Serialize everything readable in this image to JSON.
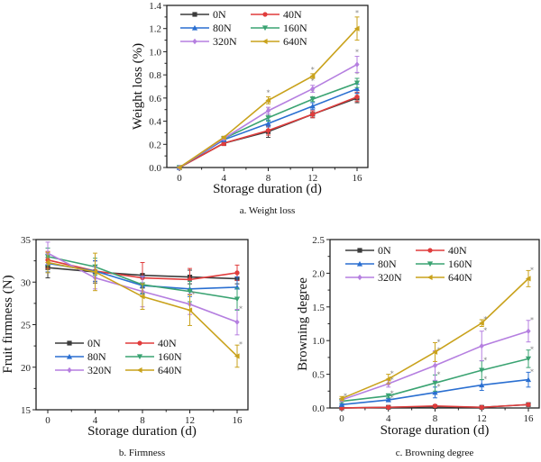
{
  "colors": {
    "0N": "#3b3b3b",
    "40N": "#e03c3c",
    "80N": "#2a6fd1",
    "160N": "#3aa372",
    "320N": "#b57fe0",
    "640N": "#c9a21c"
  },
  "chart_data": [
    {
      "id": "a",
      "type": "line",
      "title": "",
      "caption": "a. Weight loss",
      "xlabel": "Storage duration (d)",
      "ylabel": "Weight loss (%)",
      "x": [
        0,
        4,
        8,
        12,
        16
      ],
      "xticks": [
        "0",
        "4",
        "8",
        "12",
        "16"
      ],
      "yticks": [
        "0.0",
        "0.2",
        "0.4",
        "0.6",
        "0.8",
        "1.0",
        "1.2",
        "1.4"
      ],
      "ylim": [
        0,
        1.4
      ],
      "xlim": [
        -1.5,
        17.5
      ],
      "legend_position": "top-left",
      "series": [
        {
          "name": "0N",
          "values": [
            0,
            0.21,
            0.31,
            0.46,
            0.6
          ],
          "err": [
            0,
            0.02,
            0.05,
            0.03,
            0.04
          ],
          "sig": [
            false,
            false,
            false,
            false,
            false
          ]
        },
        {
          "name": "40N",
          "values": [
            0,
            0.21,
            0.32,
            0.46,
            0.61
          ],
          "err": [
            0,
            0.02,
            0.04,
            0.03,
            0.04
          ],
          "sig": [
            false,
            false,
            false,
            false,
            false
          ]
        },
        {
          "name": "80N",
          "values": [
            0,
            0.24,
            0.38,
            0.53,
            0.68
          ],
          "err": [
            0,
            0.01,
            0.03,
            0.03,
            0.04
          ],
          "sig": [
            false,
            false,
            false,
            true,
            false
          ]
        },
        {
          "name": "160N",
          "values": [
            0,
            0.25,
            0.43,
            0.59,
            0.73
          ],
          "err": [
            0,
            0.01,
            0.03,
            0.02,
            0.04
          ],
          "sig": [
            false,
            false,
            true,
            true,
            true
          ]
        },
        {
          "name": "320N",
          "values": [
            0,
            0.25,
            0.49,
            0.68,
            0.89
          ],
          "err": [
            0,
            0.01,
            0.03,
            0.03,
            0.07
          ],
          "sig": [
            false,
            false,
            true,
            true,
            true
          ]
        },
        {
          "name": "640N",
          "values": [
            0,
            0.26,
            0.58,
            0.79,
            1.2
          ],
          "err": [
            0,
            0.01,
            0.03,
            0.02,
            0.1
          ],
          "sig": [
            false,
            false,
            true,
            true,
            true
          ]
        }
      ]
    },
    {
      "id": "b",
      "type": "line",
      "title": "",
      "caption": "b. Firmness",
      "xlabel": "Storage duration (d)",
      "ylabel": "Fruit firmness (N)",
      "x": [
        0,
        4,
        8,
        12,
        16
      ],
      "xticks": [
        "0",
        "4",
        "8",
        "12",
        "16"
      ],
      "yticks": [
        "15",
        "20",
        "25",
        "30",
        "35"
      ],
      "ylim": [
        15,
        35
      ],
      "xlim": [
        -1.5,
        17.5
      ],
      "legend_position": "bottom-left",
      "series": [
        {
          "name": "0N",
          "values": [
            31.7,
            31.2,
            30.8,
            30.6,
            30.4
          ],
          "err": [
            1.2,
            1.3,
            1.5,
            0.8,
            0.6
          ],
          "sig": [
            false,
            false,
            false,
            false,
            false
          ]
        },
        {
          "name": "40N",
          "values": [
            32.6,
            31.3,
            30.5,
            30.3,
            31.1
          ],
          "err": [
            1.0,
            1.2,
            1.8,
            1.3,
            0.9
          ],
          "sig": [
            false,
            false,
            false,
            false,
            false
          ]
        },
        {
          "name": "80N",
          "values": [
            32.2,
            31.3,
            29.6,
            29.2,
            29.4
          ],
          "err": [
            1.0,
            1.2,
            1.0,
            0.9,
            1.2
          ],
          "sig": [
            false,
            false,
            false,
            false,
            false
          ]
        },
        {
          "name": "160N",
          "values": [
            33.0,
            31.8,
            29.7,
            28.9,
            28.0
          ],
          "err": [
            1.0,
            1.0,
            1.0,
            1.2,
            1.3
          ],
          "sig": [
            false,
            false,
            false,
            false,
            false
          ]
        },
        {
          "name": "320N",
          "values": [
            33.4,
            30.5,
            28.9,
            27.4,
            25.3
          ],
          "err": [
            1.3,
            1.3,
            1.8,
            1.2,
            1.5
          ],
          "sig": [
            false,
            false,
            false,
            false,
            true
          ]
        },
        {
          "name": "640N",
          "values": [
            32.3,
            31.2,
            28.3,
            26.7,
            21.3
          ],
          "err": [
            1.2,
            2.2,
            1.5,
            1.8,
            1.3
          ],
          "sig": [
            false,
            false,
            false,
            true,
            true
          ]
        }
      ]
    },
    {
      "id": "c",
      "type": "line",
      "title": "",
      "caption": "c. Browning degree",
      "xlabel": "Storage duration (d)",
      "ylabel": "Browning degree",
      "x": [
        0,
        4,
        8,
        12,
        16
      ],
      "xticks": [
        "0",
        "4",
        "8",
        "12",
        "16"
      ],
      "yticks": [
        "0.0",
        "0.5",
        "1.0",
        "1.5",
        "2.0",
        "2.5"
      ],
      "ylim": [
        0,
        2.5
      ],
      "xlim": [
        -1.5,
        17.5
      ],
      "legend_position": "top-left",
      "series": [
        {
          "name": "0N",
          "values": [
            0.0,
            0.01,
            0.02,
            0.01,
            0.05
          ],
          "err": [
            0,
            0.01,
            0.01,
            0.01,
            0.01
          ],
          "sig": [
            false,
            false,
            false,
            false,
            false
          ]
        },
        {
          "name": "40N",
          "values": [
            0.0,
            0.01,
            0.03,
            0.01,
            0.05
          ],
          "err": [
            0,
            0.01,
            0.01,
            0.01,
            0.01
          ],
          "sig": [
            false,
            false,
            false,
            false,
            false
          ]
        },
        {
          "name": "80N",
          "values": [
            0.05,
            0.12,
            0.23,
            0.34,
            0.42
          ],
          "err": [
            0.01,
            0.02,
            0.08,
            0.08,
            0.11
          ],
          "sig": [
            false,
            true,
            true,
            true,
            true
          ]
        },
        {
          "name": "160N",
          "values": [
            0.1,
            0.18,
            0.37,
            0.56,
            0.73
          ],
          "err": [
            0.02,
            0.03,
            0.12,
            0.14,
            0.13
          ],
          "sig": [
            false,
            true,
            true,
            true,
            true
          ]
        },
        {
          "name": "320N",
          "values": [
            0.12,
            0.36,
            0.63,
            0.92,
            1.14
          ],
          "err": [
            0.02,
            0.05,
            0.22,
            0.22,
            0.16
          ],
          "sig": [
            false,
            true,
            true,
            true,
            true
          ]
        },
        {
          "name": "640N",
          "values": [
            0.14,
            0.43,
            0.83,
            1.26,
            1.92
          ],
          "err": [
            0.03,
            0.07,
            0.14,
            0.05,
            0.12
          ],
          "sig": [
            true,
            true,
            true,
            true,
            true
          ]
        }
      ]
    }
  ]
}
